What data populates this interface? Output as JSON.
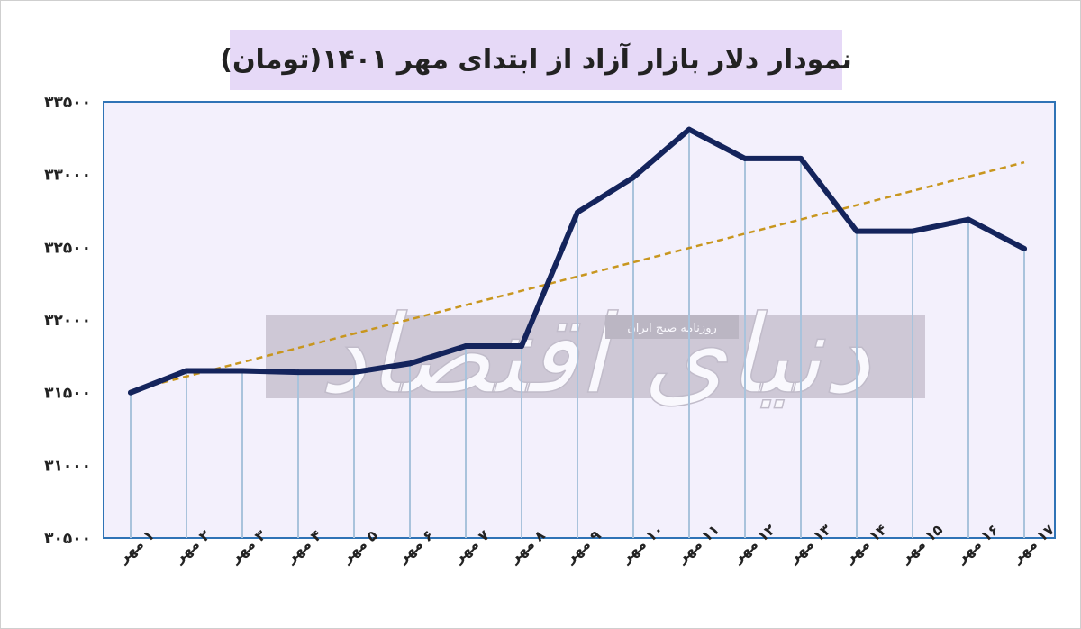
{
  "title": "نمودار دلار بازار آزاد از ابتدای مهر ۱۴۰۱(تومان)",
  "watermark": {
    "brand": "دنیای اقتصاد",
    "tagline": "روزنامه صبح ایران"
  },
  "colors": {
    "line": "#14245c",
    "trend": "#c8961e",
    "plot_bg": "#f3f0fc",
    "plot_border": "#2f73b6",
    "drop_lines": "#a9c3dc",
    "title_bg": "#e6d9f7"
  },
  "chart_data": {
    "type": "line",
    "title": "نمودار دلار بازار آزاد از ابتدای مهر ۱۴۰۱(تومان)",
    "xlabel": "",
    "ylabel": "",
    "categories": [
      "۱ مهر",
      "۲ مهر",
      "۳ مهر",
      "۴ مهر",
      "۵ مهر",
      "۶ مهر",
      "۷ مهر",
      "۸ مهر",
      "۹ مهر",
      "۱۰ مهر",
      "۱۱ مهر",
      "۱۲ مهر",
      "۱۳ مهر",
      "۱۴ مهر",
      "۱۵ مهر",
      "۱۶ مهر",
      "۱۷ مهر"
    ],
    "series": [
      {
        "values": [
          31500,
          31650,
          31650,
          31640,
          31640,
          31700,
          31820,
          31820,
          32740,
          32980,
          33310,
          33110,
          33110,
          32610,
          32610,
          32690,
          32490
        ]
      }
    ],
    "trendline": {
      "type": "linear",
      "style": "dashed"
    },
    "ylim": [
      30500,
      33500
    ],
    "ytick_values": [
      30500,
      31000,
      31500,
      32000,
      32500,
      33000,
      33500
    ],
    "ytick_labels": [
      "۳۰۵۰۰",
      "۳۱۰۰۰",
      "۳۱۵۰۰",
      "۳۲۰۰۰",
      "۳۲۵۰۰",
      "۳۳۰۰۰",
      "۳۳۵۰۰"
    ],
    "grid": false,
    "drop_lines": true,
    "legend": "none"
  }
}
